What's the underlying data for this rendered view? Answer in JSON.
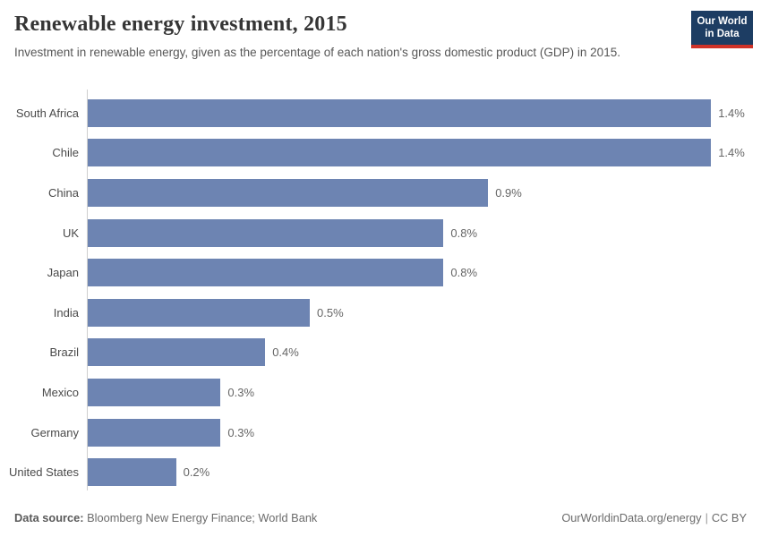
{
  "header": {
    "title": "Renewable energy investment, 2015",
    "subtitle": "Investment in renewable energy, given as the percentage of each nation's gross domestic product (GDP) in 2015.",
    "logo": {
      "line1": "Our World",
      "line2": "in Data",
      "bg_color": "#1d3d63",
      "stripe_color": "#cf3228"
    }
  },
  "chart_data": {
    "type": "bar",
    "orientation": "horizontal",
    "title": "Renewable energy investment, 2015",
    "subtitle": "Investment in renewable energy, given as the percentage of each nation's gross domestic product (GDP) in 2015.",
    "categories": [
      "South Africa",
      "Chile",
      "China",
      "UK",
      "Japan",
      "India",
      "Brazil",
      "Mexico",
      "Germany",
      "United States"
    ],
    "values": [
      1.4,
      1.4,
      0.9,
      0.8,
      0.8,
      0.5,
      0.4,
      0.3,
      0.3,
      0.2
    ],
    "value_labels": [
      "1.4%",
      "1.4%",
      "0.9%",
      "0.8%",
      "0.8%",
      "0.5%",
      "0.4%",
      "0.3%",
      "0.3%",
      "0.2%"
    ],
    "unit": "%",
    "xlim": [
      0,
      1.5
    ],
    "bar_color": "#6d84b2",
    "grid": false,
    "legend": false,
    "value_labels_position": "end-of-bar"
  },
  "footer": {
    "datasource_label": "Data source:",
    "datasource_value": " Bloomberg New Energy Finance; World Bank",
    "link": "OurWorldinData.org/energy",
    "separator": "|",
    "license": "CC BY"
  }
}
